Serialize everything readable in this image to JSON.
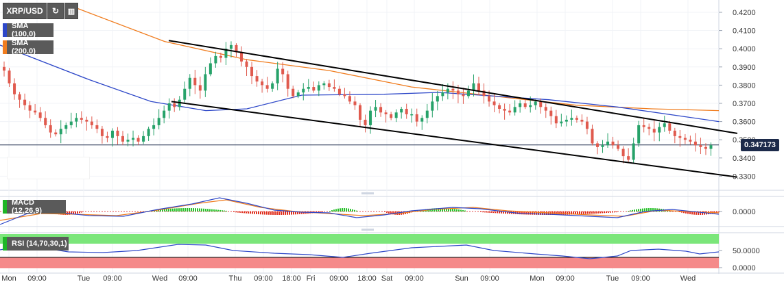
{
  "toolbar": {
    "symbol": "XRP/USD",
    "refresh_icon": "refresh-icon",
    "bars_icon": "bar-chart-icon"
  },
  "overlays": {
    "sma100": {
      "label": "SMA (100,0)",
      "color": "#2d47c8"
    },
    "sma200": {
      "label": "SMA (200,0)",
      "color": "#f07c1e"
    }
  },
  "panels": {
    "macd": {
      "label": "MACD (12,26,9)",
      "zero_tick": "0.0000",
      "swatch": "#1eb526"
    },
    "rsi": {
      "label": "RSI (14,70,30,1)",
      "ticks": [
        "50.0000",
        "0.0000"
      ],
      "swatch": "#1eb526"
    }
  },
  "current_price": "0.347173",
  "colors": {
    "up": "#26a269",
    "down": "#e05a4e",
    "trend": "#000000",
    "rsi_ob": "#7be67a",
    "rsi_os": "#f58a8a"
  },
  "chart_data": {
    "type": "candlestick",
    "symbol": "XRP/USD",
    "y_ticks": [
      "0.4200",
      "0.4100",
      "0.4000",
      "0.3900",
      "0.3800",
      "0.3700",
      "0.3600",
      "0.3500",
      "0.3400",
      "0.3300"
    ],
    "ylim": [
      0.325,
      0.424
    ],
    "x_ticks": [
      "Mon",
      "09:00",
      "Tue",
      "09:00",
      "Wed",
      "09:00",
      "Thu",
      "09:00",
      "18:00",
      "Fri",
      "09:00",
      "18:00",
      "Sat",
      "09:00",
      "Sun",
      "09:00",
      "Mon",
      "09:00",
      "Tue",
      "09:00",
      "Wed"
    ],
    "close_path": [
      0.388,
      0.381,
      0.375,
      0.372,
      0.369,
      0.366,
      0.365,
      0.362,
      0.358,
      0.354,
      0.353,
      0.356,
      0.358,
      0.36,
      0.362,
      0.361,
      0.36,
      0.358,
      0.356,
      0.352,
      0.351,
      0.355,
      0.352,
      0.349,
      0.35,
      0.351,
      0.349,
      0.352,
      0.356,
      0.358,
      0.362,
      0.366,
      0.37,
      0.368,
      0.372,
      0.378,
      0.384,
      0.38,
      0.377,
      0.386,
      0.392,
      0.396,
      0.395,
      0.4,
      0.402,
      0.398,
      0.393,
      0.39,
      0.385,
      0.382,
      0.38,
      0.378,
      0.381,
      0.389,
      0.386,
      0.378,
      0.374,
      0.376,
      0.378,
      0.379,
      0.377,
      0.38,
      0.381,
      0.379,
      0.378,
      0.375,
      0.374,
      0.371,
      0.369,
      0.361,
      0.358,
      0.366,
      0.368,
      0.365,
      0.364,
      0.362,
      0.365,
      0.367,
      0.364,
      0.364,
      0.36,
      0.362,
      0.366,
      0.371,
      0.374,
      0.376,
      0.378,
      0.377,
      0.375,
      0.374,
      0.377,
      0.381,
      0.377,
      0.374,
      0.371,
      0.369,
      0.367,
      0.366,
      0.365,
      0.368,
      0.37,
      0.368,
      0.369,
      0.371,
      0.368,
      0.366,
      0.363,
      0.359,
      0.36,
      0.361,
      0.362,
      0.361,
      0.36,
      0.356,
      0.348,
      0.346,
      0.347,
      0.349,
      0.347,
      0.345,
      0.341,
      0.339,
      0.348,
      0.358,
      0.357,
      0.356,
      0.354,
      0.357,
      0.359,
      0.355,
      0.352,
      0.351,
      0.35,
      0.349,
      0.347,
      0.346,
      0.345,
      0.347
    ],
    "sma100": [
      [
        0,
        0.402
      ],
      [
        130,
        0.383
      ],
      [
        220,
        0.371
      ],
      [
        300,
        0.366
      ],
      [
        360,
        0.367
      ],
      [
        440,
        0.3745
      ],
      [
        560,
        0.375
      ],
      [
        640,
        0.376
      ],
      [
        800,
        0.372
      ],
      [
        900,
        0.368
      ],
      [
        1048,
        0.36
      ]
    ],
    "sma200": [
      [
        100,
        0.424
      ],
      [
        240,
        0.404
      ],
      [
        360,
        0.394
      ],
      [
        480,
        0.388
      ],
      [
        600,
        0.379
      ],
      [
        720,
        0.374
      ],
      [
        840,
        0.369
      ],
      [
        950,
        0.367
      ],
      [
        1048,
        0.366
      ]
    ],
    "trendlines": [
      {
        "name": "upper",
        "from": [
          "09:00 Wed",
          0.4045
        ],
        "to": [
          "Wed",
          0.3535
        ]
      },
      {
        "name": "lower",
        "from": [
          "09:00 Wed",
          0.371
        ],
        "to": [
          "Wed",
          0.3295
        ]
      }
    ]
  }
}
